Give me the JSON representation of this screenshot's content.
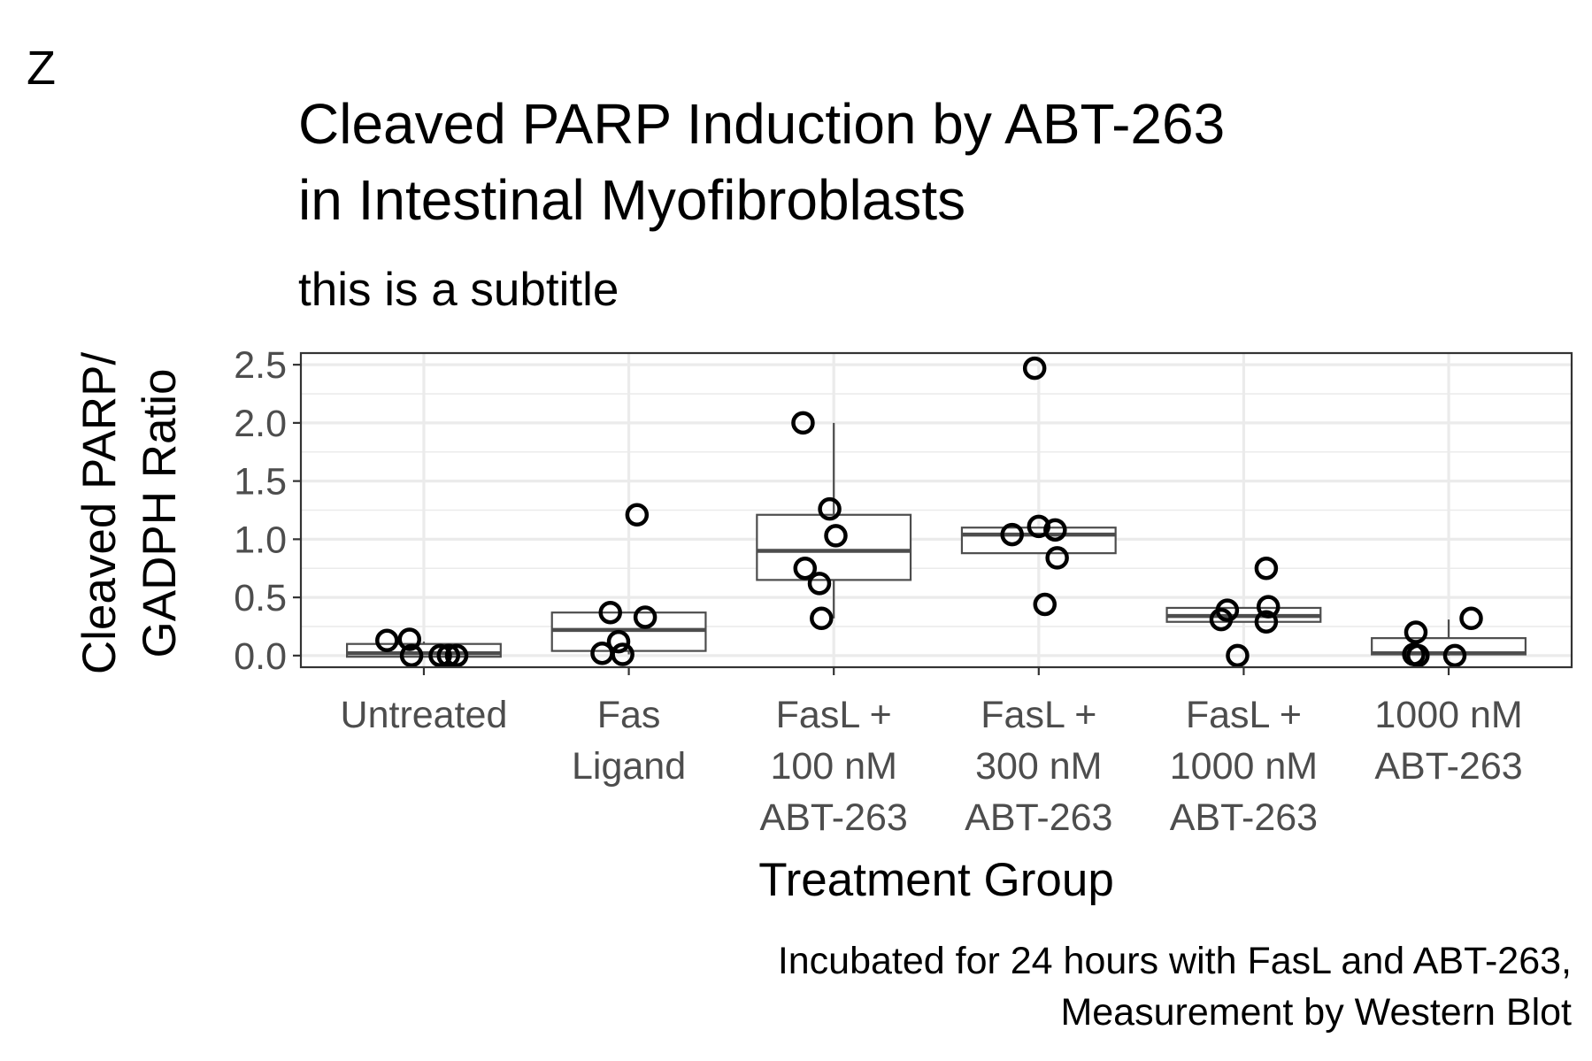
{
  "chart_data": {
    "type": "boxplot",
    "panel_tag": "Z",
    "title_lines": [
      "Cleaved PARP Induction by ABT-263",
      "in Intestinal Myofibroblasts"
    ],
    "subtitle": "this is a subtitle",
    "ylabel_lines": [
      "Cleaved PARP/",
      "GADPH Ratio"
    ],
    "xlabel": "Treatment Group",
    "caption_lines": [
      "Incubated for 24 hours with FasL and ABT-263,",
      "Measurement by Western Blot"
    ],
    "ylim": [
      -0.1,
      2.6
    ],
    "yticks": [
      0.0,
      0.5,
      1.0,
      1.5,
      2.0,
      2.5
    ],
    "ytick_labels": [
      "0.0",
      "0.5",
      "1.0",
      "1.5",
      "2.0",
      "2.5"
    ],
    "grid": true,
    "colors": {
      "box_stroke": "#4d4d4d",
      "point_stroke": "#000000",
      "grid": "#ebebeb",
      "panel_border": "#333333",
      "tick_label": "#4d4d4d"
    },
    "groups": [
      {
        "label_lines": [
          "Untreated"
        ],
        "box": {
          "q1": -0.01,
          "median": 0.02,
          "q3": 0.1,
          "whisker_low": -0.01,
          "whisker_high": 0.12
        },
        "points": [
          {
            "jitter": -0.18,
            "y": 0.13
          },
          {
            "jitter": -0.07,
            "y": 0.14
          },
          {
            "jitter": -0.06,
            "y": 0.0
          },
          {
            "jitter": 0.08,
            "y": 0.0
          },
          {
            "jitter": 0.12,
            "y": 0.0
          },
          {
            "jitter": 0.16,
            "y": 0.0
          }
        ]
      },
      {
        "label_lines": [
          "Fas",
          "Ligand"
        ],
        "box": {
          "q1": 0.04,
          "median": 0.22,
          "q3": 0.37,
          "whisker_low": 0.01,
          "whisker_high": 0.37
        },
        "points": [
          {
            "jitter": 0.04,
            "y": 1.21
          },
          {
            "jitter": -0.09,
            "y": 0.37
          },
          {
            "jitter": 0.08,
            "y": 0.33
          },
          {
            "jitter": -0.05,
            "y": 0.12
          },
          {
            "jitter": -0.13,
            "y": 0.02
          },
          {
            "jitter": -0.03,
            "y": 0.01
          }
        ]
      },
      {
        "label_lines": [
          "FasL +",
          "100 nM",
          "ABT-263"
        ],
        "box": {
          "q1": 0.65,
          "median": 0.9,
          "q3": 1.21,
          "whisker_low": 0.32,
          "whisker_high": 2.0
        },
        "points": [
          {
            "jitter": -0.15,
            "y": 2.0
          },
          {
            "jitter": -0.02,
            "y": 1.26
          },
          {
            "jitter": 0.01,
            "y": 1.03
          },
          {
            "jitter": -0.14,
            "y": 0.75
          },
          {
            "jitter": -0.07,
            "y": 0.62
          },
          {
            "jitter": -0.06,
            "y": 0.32
          }
        ]
      },
      {
        "label_lines": [
          "FasL +",
          "300 nM",
          "ABT-263"
        ],
        "box": {
          "q1": 0.88,
          "median": 1.04,
          "q3": 1.1,
          "whisker_low": 0.88,
          "whisker_high": 1.1
        },
        "points": [
          {
            "jitter": -0.02,
            "y": 2.47
          },
          {
            "jitter": 0.0,
            "y": 1.11
          },
          {
            "jitter": 0.08,
            "y": 1.08
          },
          {
            "jitter": -0.13,
            "y": 1.04
          },
          {
            "jitter": 0.09,
            "y": 0.84
          },
          {
            "jitter": 0.03,
            "y": 0.44
          }
        ]
      },
      {
        "label_lines": [
          "FasL +",
          "1000 nM",
          "ABT-263"
        ],
        "box": {
          "q1": 0.29,
          "median": 0.34,
          "q3": 0.41,
          "whisker_low": 0.29,
          "whisker_high": 0.41
        },
        "points": [
          {
            "jitter": 0.11,
            "y": 0.75
          },
          {
            "jitter": 0.12,
            "y": 0.42
          },
          {
            "jitter": -0.08,
            "y": 0.39
          },
          {
            "jitter": -0.11,
            "y": 0.31
          },
          {
            "jitter": 0.11,
            "y": 0.29
          },
          {
            "jitter": -0.03,
            "y": 0.0
          }
        ]
      },
      {
        "label_lines": [
          "1000 nM",
          "ABT-263"
        ],
        "box": {
          "q1": 0.01,
          "median": 0.02,
          "q3": 0.15,
          "whisker_low": 0.0,
          "whisker_high": 0.31
        },
        "points": [
          {
            "jitter": 0.11,
            "y": 0.32
          },
          {
            "jitter": -0.16,
            "y": 0.2
          },
          {
            "jitter": -0.17,
            "y": 0.01
          },
          {
            "jitter": -0.15,
            "y": 0.0
          },
          {
            "jitter": 0.03,
            "y": 0.0
          }
        ]
      }
    ]
  }
}
